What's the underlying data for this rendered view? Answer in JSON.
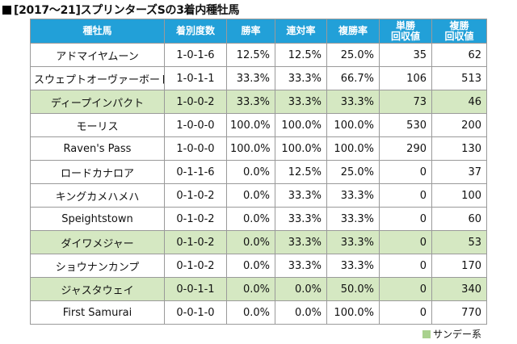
{
  "title": "[2017〜21]スプリンターズSの3着内種牡馬",
  "colors": {
    "header_bg": "#22a0d8",
    "sunday_row": "#d5e8c2",
    "legend_swatch": "#a9d18e"
  },
  "headers": [
    "種牡馬",
    "着別度数",
    "勝率",
    "連対率",
    "複勝率",
    "単勝\n回収値",
    "複勝\n回収値"
  ],
  "rows": [
    {
      "sire": "アドマイヤムーン",
      "record": "1-0-1-6",
      "win": "12.5%",
      "quinella": "12.5%",
      "show": "25.0%",
      "win_return": "35",
      "show_return": "62",
      "sunday": false
    },
    {
      "sire": "スウェプトオーヴァーボード",
      "record": "1-0-1-1",
      "win": "33.3%",
      "quinella": "33.3%",
      "show": "66.7%",
      "win_return": "106",
      "show_return": "513",
      "sunday": false
    },
    {
      "sire": "ディープインパクト",
      "record": "1-0-0-2",
      "win": "33.3%",
      "quinella": "33.3%",
      "show": "33.3%",
      "win_return": "73",
      "show_return": "46",
      "sunday": true
    },
    {
      "sire": "モーリス",
      "record": "1-0-0-0",
      "win": "100.0%",
      "quinella": "100.0%",
      "show": "100.0%",
      "win_return": "530",
      "show_return": "200",
      "sunday": false
    },
    {
      "sire": "Raven's Pass",
      "record": "1-0-0-0",
      "win": "100.0%",
      "quinella": "100.0%",
      "show": "100.0%",
      "win_return": "290",
      "show_return": "130",
      "sunday": false
    },
    {
      "sire": "ロードカナロア",
      "record": "0-1-1-6",
      "win": "0.0%",
      "quinella": "12.5%",
      "show": "25.0%",
      "win_return": "0",
      "show_return": "37",
      "sunday": false
    },
    {
      "sire": "キングカメハメハ",
      "record": "0-1-0-2",
      "win": "0.0%",
      "quinella": "33.3%",
      "show": "33.3%",
      "win_return": "0",
      "show_return": "100",
      "sunday": false
    },
    {
      "sire": "Speightstown",
      "record": "0-1-0-2",
      "win": "0.0%",
      "quinella": "33.3%",
      "show": "33.3%",
      "win_return": "0",
      "show_return": "60",
      "sunday": false
    },
    {
      "sire": "ダイワメジャー",
      "record": "0-1-0-2",
      "win": "0.0%",
      "quinella": "33.3%",
      "show": "33.3%",
      "win_return": "0",
      "show_return": "53",
      "sunday": true
    },
    {
      "sire": "ショウナンカンプ",
      "record": "0-1-0-2",
      "win": "0.0%",
      "quinella": "33.3%",
      "show": "33.3%",
      "win_return": "0",
      "show_return": "170",
      "sunday": false
    },
    {
      "sire": "ジャスタウェイ",
      "record": "0-0-1-1",
      "win": "0.0%",
      "quinella": "0.0%",
      "show": "50.0%",
      "win_return": "0",
      "show_return": "340",
      "sunday": true
    },
    {
      "sire": "First Samurai",
      "record": "0-0-1-0",
      "win": "0.0%",
      "quinella": "0.0%",
      "show": "100.0%",
      "win_return": "0",
      "show_return": "770",
      "sunday": false
    }
  ],
  "legend": "サンデー系"
}
